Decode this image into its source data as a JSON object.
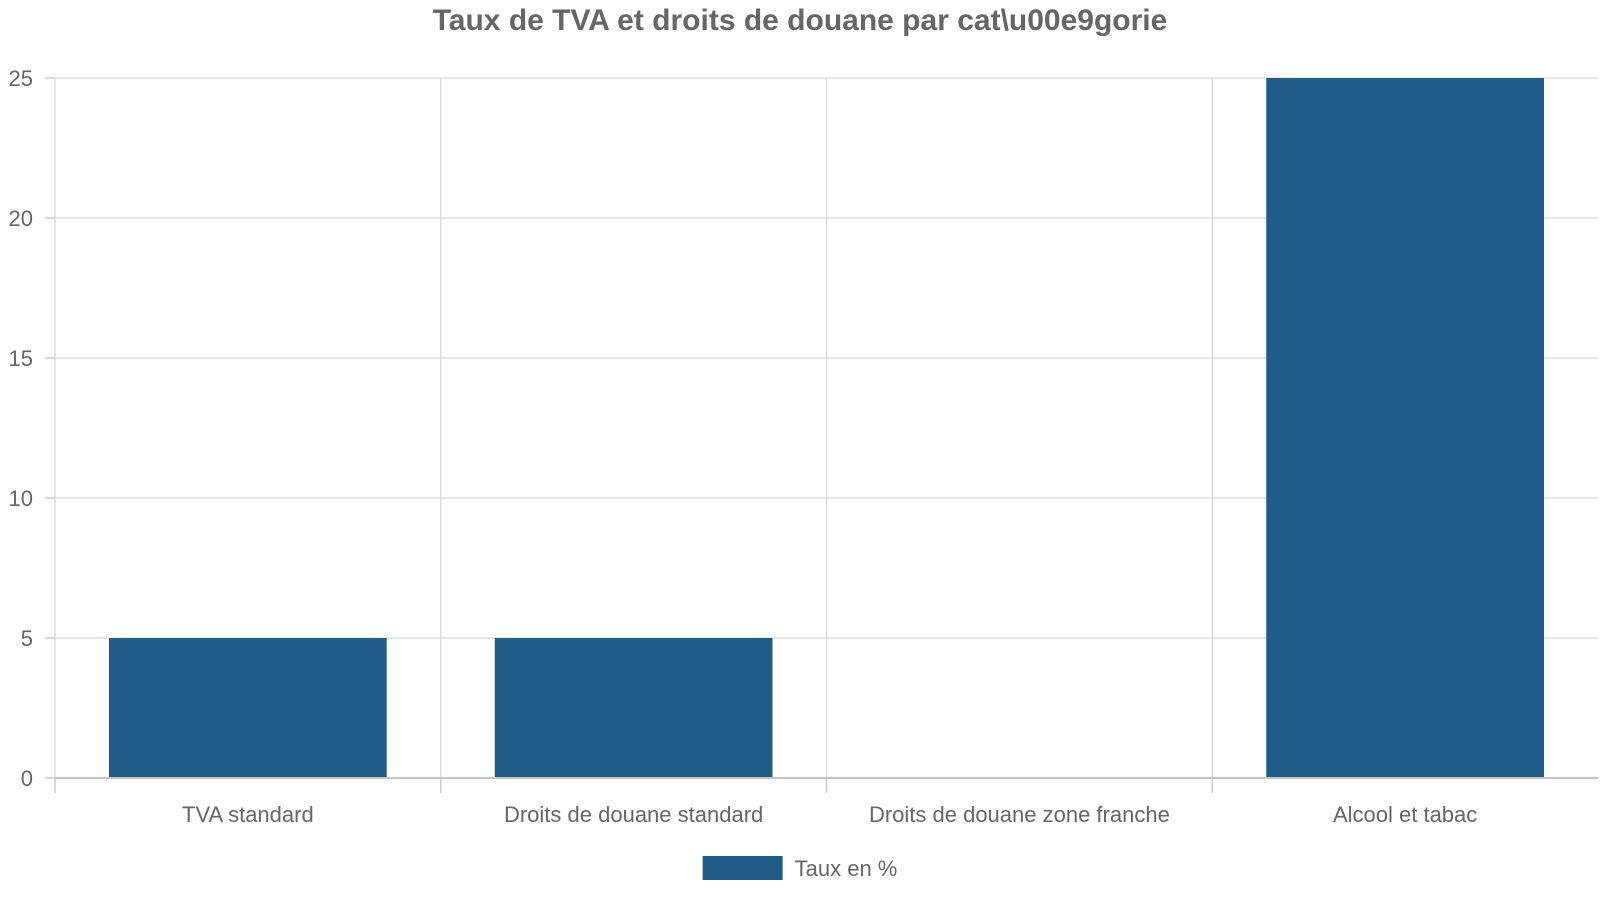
{
  "chart_data": {
    "type": "bar",
    "title": "Taux de TVA et droits de douane par cat\\u00e9gorie",
    "categories": [
      "TVA standard",
      "Droits de douane standard",
      "Droits de douane zone franche",
      "Alcool et tabac"
    ],
    "series": [
      {
        "name": "Taux en %",
        "values": [
          5,
          5,
          0,
          25
        ],
        "color": "#1f5c87"
      }
    ],
    "xlabel": "",
    "ylabel": "",
    "ylim": [
      0,
      25
    ],
    "yticks": [
      0,
      5,
      10,
      15,
      20,
      25
    ],
    "grid": true,
    "legend_position": "bottom-center"
  }
}
